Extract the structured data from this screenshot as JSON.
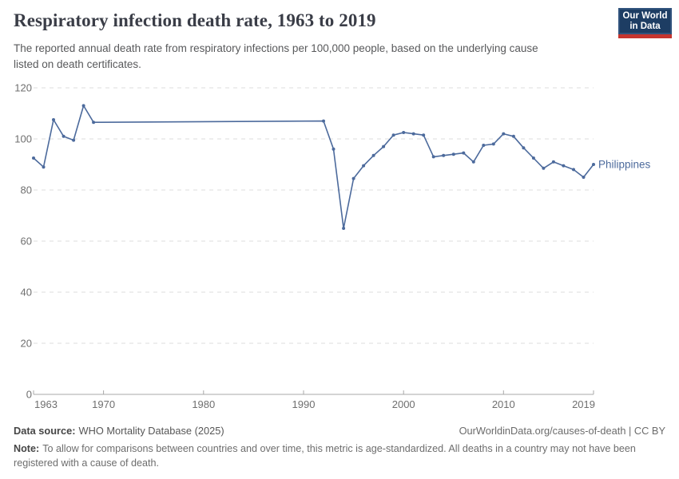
{
  "header": {
    "title": "Respiratory infection death rate, 1963 to 2019",
    "subtitle": "The reported annual death rate from respiratory infections per 100,000 people, based on the underlying cause listed on death certificates.",
    "logo_line1": "Our World",
    "logo_line2": "in Data"
  },
  "chart_data": {
    "type": "line",
    "title": "Respiratory infection death rate, 1963 to 2019",
    "xlabel": "",
    "ylabel": "",
    "xlim": [
      1963,
      2019
    ],
    "ylim": [
      0,
      120
    ],
    "yticks": [
      0,
      20,
      40,
      60,
      80,
      100,
      120
    ],
    "xticks": [
      1963,
      1970,
      1980,
      1990,
      2000,
      2010,
      2019
    ],
    "grid": "horizontal-dashed",
    "legend_position": "end-of-line-label",
    "end_label": "Philippines",
    "series": [
      {
        "name": "Philippines",
        "color": "#4c6a9c",
        "points": [
          [
            1963,
            92.5
          ],
          [
            1964,
            89
          ],
          [
            1965,
            107.5
          ],
          [
            1966,
            101
          ],
          [
            1967,
            99.5
          ],
          [
            1968,
            113
          ],
          [
            1969,
            106.5
          ],
          [
            1992,
            107
          ],
          [
            1993,
            96
          ],
          [
            1994,
            65
          ],
          [
            1995,
            84.5
          ],
          [
            1996,
            89.5
          ],
          [
            1997,
            93.5
          ],
          [
            1998,
            97
          ],
          [
            1999,
            101.5
          ],
          [
            2000,
            102.5
          ],
          [
            2001,
            102
          ],
          [
            2002,
            101.5
          ],
          [
            2003,
            93
          ],
          [
            2004,
            93.5
          ],
          [
            2005,
            94
          ],
          [
            2006,
            94.5
          ],
          [
            2007,
            91
          ],
          [
            2008,
            97.5
          ],
          [
            2009,
            98
          ],
          [
            2010,
            102
          ],
          [
            2011,
            101
          ],
          [
            2012,
            96.5
          ],
          [
            2013,
            92.5
          ],
          [
            2014,
            88.5
          ],
          [
            2015,
            91
          ],
          [
            2016,
            89.5
          ],
          [
            2017,
            88
          ],
          [
            2018,
            85
          ],
          [
            2019,
            90
          ]
        ]
      }
    ]
  },
  "footer": {
    "source_label": "Data source:",
    "source_text": "WHO Mortality Database (2025)",
    "link": "OurWorldinData.org/causes-of-death | CC BY",
    "note_label": "Note:",
    "note_text": "To allow for comparisons between countries and over time, this metric is age-standardized. All deaths in a country may not have been registered with a cause of death."
  },
  "colors": {
    "line": "#4c6a9c",
    "grid": "#dedede",
    "axis": "#a8a8a8",
    "logo_bg": "#1d3d63",
    "logo_red": "#c5352f"
  }
}
